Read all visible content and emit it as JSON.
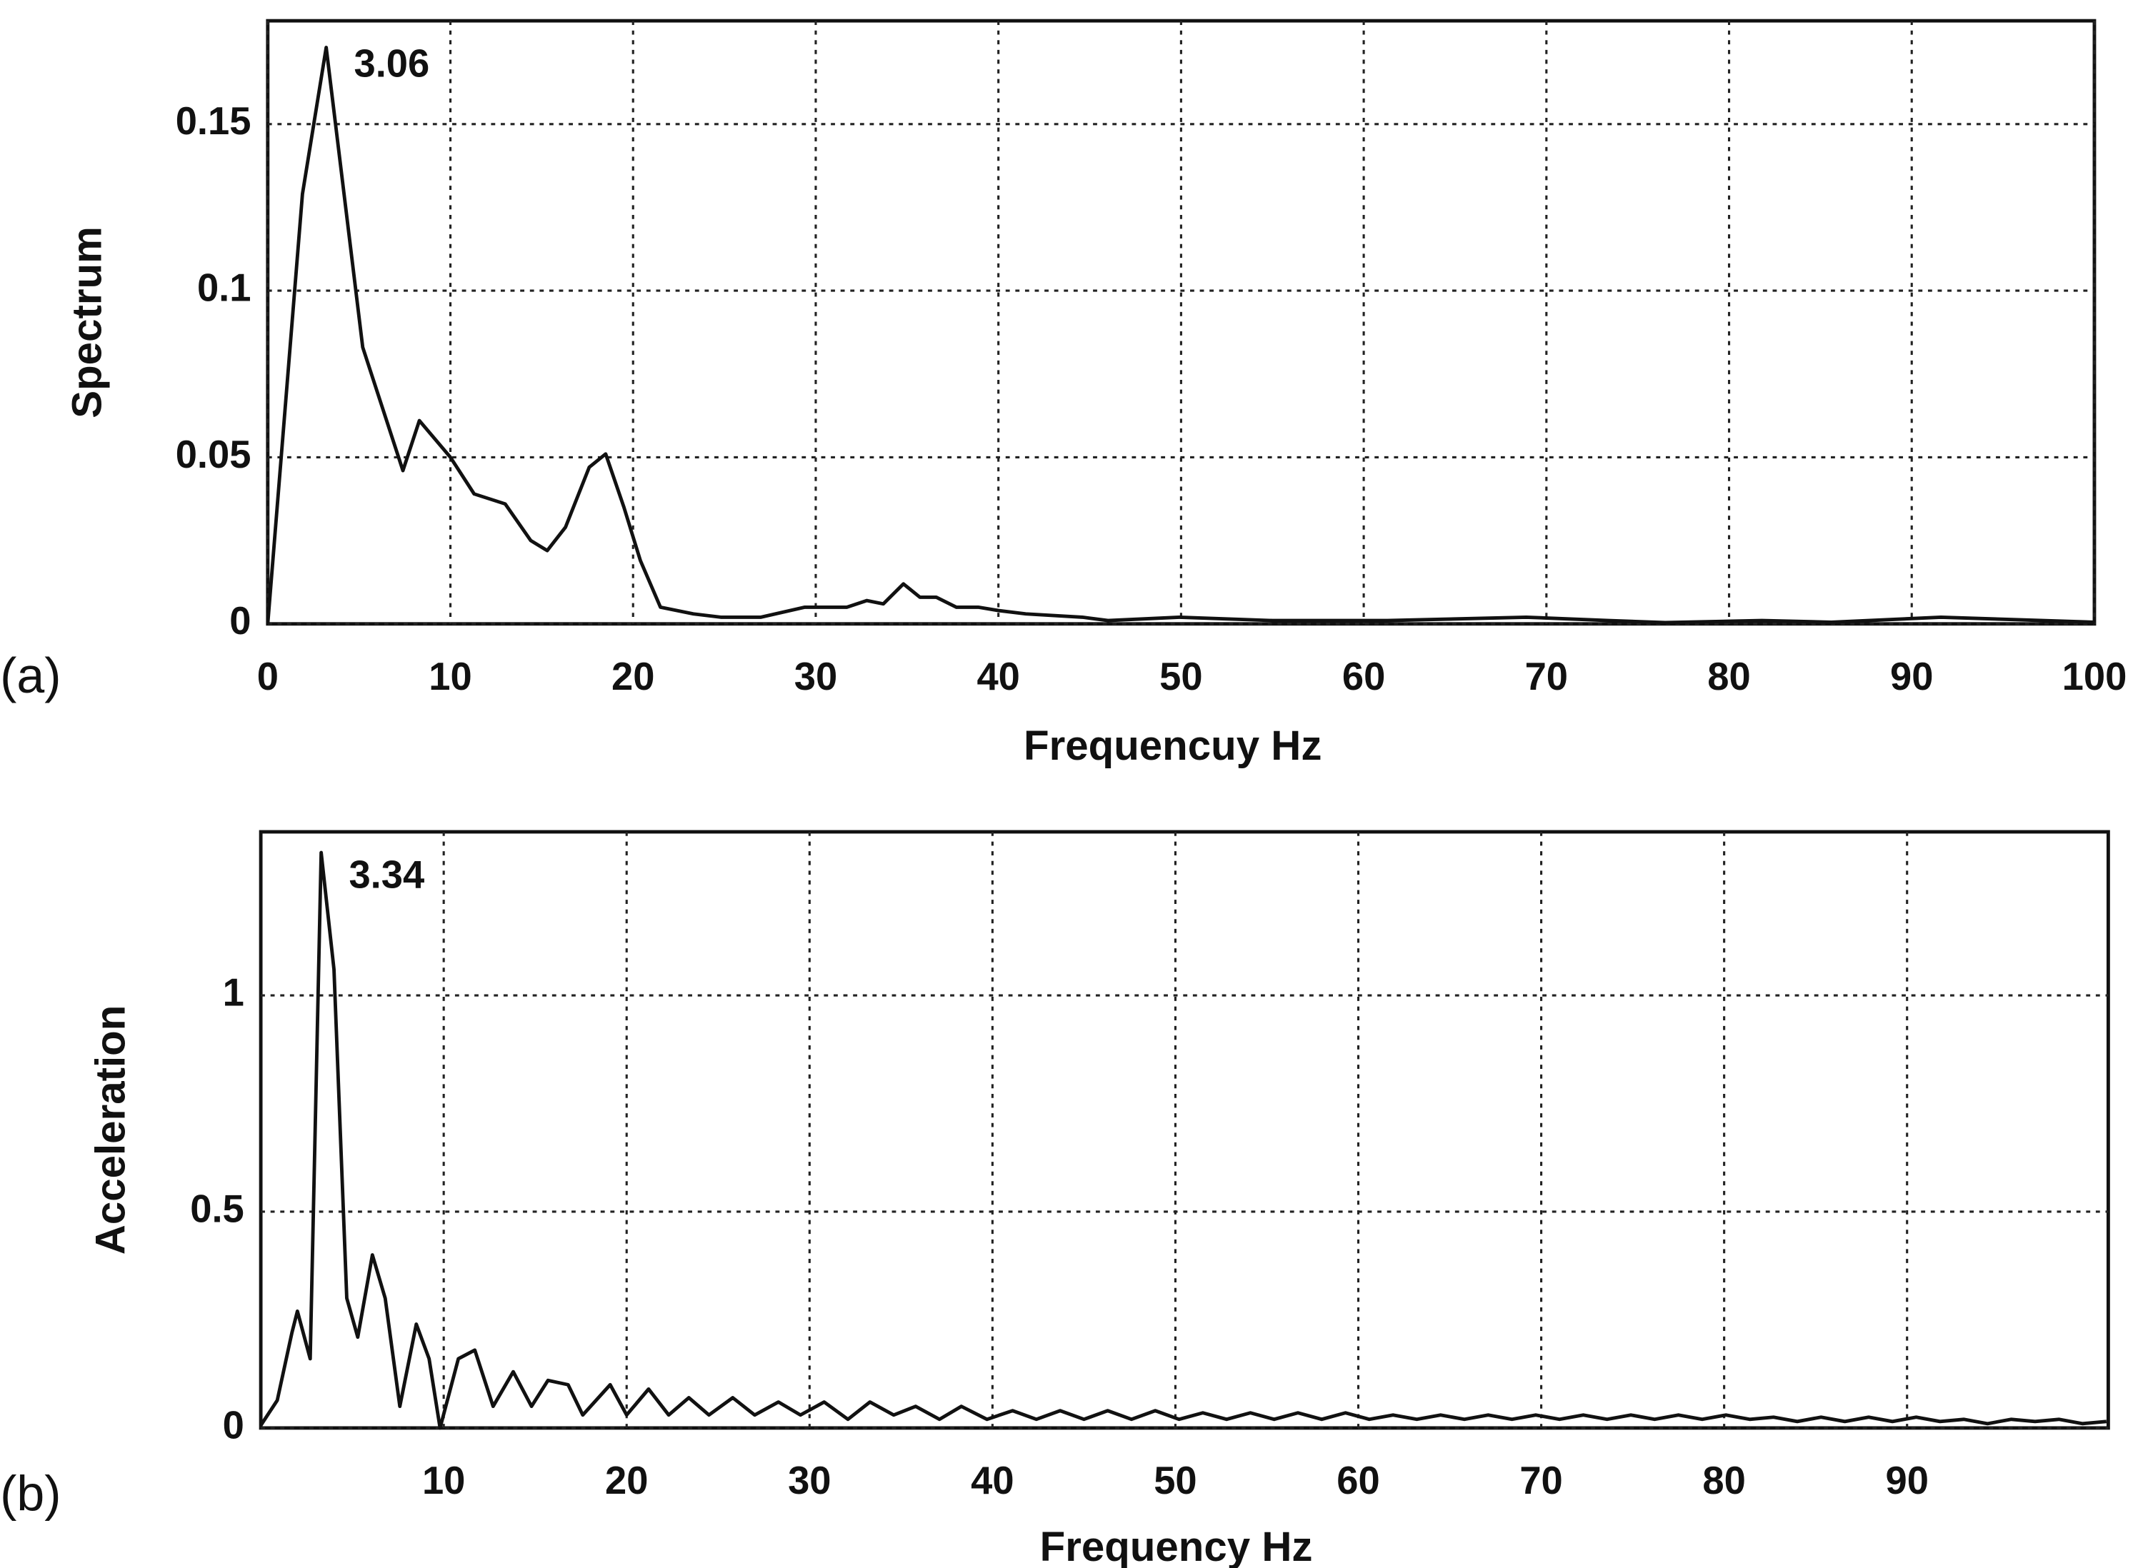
{
  "chart_data": [
    {
      "type": "line",
      "panel_label": "(a)",
      "annotation": "3.06",
      "xlabel": "Frequencuy Hz",
      "ylabel": "Spectrum",
      "color": "#111111",
      "x": [
        0,
        1.9,
        3.2,
        5.2,
        7.4,
        8.3,
        10,
        11.3,
        13,
        14.4,
        15.3,
        16.3,
        17.6,
        18.5,
        19.5,
        20.4,
        21.5,
        23.3,
        24.8,
        27,
        29.4,
        31.7,
        32.8,
        33.7,
        34.8,
        35.7,
        36.6,
        37.7,
        38.9,
        40,
        41.5,
        44.6,
        46,
        49.9,
        55,
        61.3,
        68.9,
        73.4,
        76.5,
        81.8,
        85.6,
        91.6,
        100
      ],
      "values": [
        0,
        0.129,
        0.173,
        0.083,
        0.046,
        0.061,
        0.05,
        0.039,
        0.036,
        0.025,
        0.022,
        0.029,
        0.047,
        0.051,
        0.035,
        0.019,
        0.005,
        0.003,
        0.002,
        0.002,
        0.005,
        0.005,
        0.007,
        0.006,
        0.012,
        0.008,
        0.008,
        0.005,
        0.005,
        0.004,
        0.003,
        0.002,
        0.001,
        0.002,
        0.001,
        0.001,
        0.002,
        0.001,
        0.0004,
        0.001,
        0.0005,
        0.002,
        0.0005
      ],
      "xlim": [
        0,
        100
      ],
      "ylim": [
        0,
        0.181
      ],
      "xticks": [
        0,
        10,
        20,
        30,
        40,
        50,
        60,
        70,
        80,
        90,
        100
      ],
      "yticks": [
        0,
        0.05,
        0.1,
        0.15
      ],
      "grid": true
    },
    {
      "type": "line",
      "panel_label": "(b)",
      "annotation": "3.34",
      "xlabel": "Frequency Hz",
      "ylabel": "Acceleration",
      "color": "#111111",
      "x": [
        0,
        0.9,
        1.7,
        2.0,
        2.7,
        3.3,
        4.0,
        4.7,
        5.3,
        6.1,
        6.8,
        7.6,
        8.5,
        9.2,
        9.8,
        10.8,
        11.7,
        12.7,
        13.8,
        14.8,
        15.7,
        16.8,
        17.6,
        19.1,
        20,
        21.2,
        22.3,
        23.4,
        24.5,
        25.8,
        27,
        28.3,
        29.5,
        30.8,
        32.1,
        33.3,
        34.6,
        35.8,
        37.1,
        38.3,
        39.7,
        41.1,
        42.4,
        43.7,
        45,
        46.3,
        47.6,
        48.9,
        50.2,
        51.5,
        52.8,
        54.1,
        55.4,
        56.7,
        58,
        59.3,
        60.6,
        61.9,
        63.2,
        64.5,
        65.8,
        67.1,
        68.4,
        69.7,
        71,
        72.3,
        73.6,
        74.9,
        76.2,
        77.5,
        78.8,
        80.1,
        81.4,
        82.7,
        84,
        85.3,
        86.6,
        87.9,
        89.2,
        90.5,
        91.8,
        93.1,
        94.4,
        95.7,
        97,
        98.3,
        99.6,
        100.9
      ],
      "values": [
        0.006,
        0.064,
        0.22,
        0.27,
        0.16,
        1.33,
        1.06,
        0.3,
        0.21,
        0.4,
        0.3,
        0.05,
        0.24,
        0.16,
        0,
        0.16,
        0.18,
        0.05,
        0.13,
        0.05,
        0.11,
        0.1,
        0.03,
        0.1,
        0.03,
        0.09,
        0.03,
        0.07,
        0.03,
        0.07,
        0.03,
        0.06,
        0.03,
        0.06,
        0.02,
        0.06,
        0.03,
        0.05,
        0.02,
        0.05,
        0.02,
        0.04,
        0.02,
        0.04,
        0.02,
        0.04,
        0.02,
        0.04,
        0.02,
        0.035,
        0.02,
        0.035,
        0.02,
        0.035,
        0.02,
        0.035,
        0.02,
        0.03,
        0.02,
        0.03,
        0.02,
        0.03,
        0.02,
        0.03,
        0.02,
        0.03,
        0.02,
        0.03,
        0.02,
        0.03,
        0.02,
        0.03,
        0.02,
        0.025,
        0.015,
        0.025,
        0.015,
        0.025,
        0.015,
        0.025,
        0.015,
        0.02,
        0.01,
        0.02,
        0.015,
        0.02,
        0.01,
        0.015
      ],
      "xlim": [
        0,
        101
      ],
      "ylim": [
        0,
        1.378
      ],
      "xticks": [
        10,
        20,
        30,
        40,
        50,
        60,
        70,
        80,
        90
      ],
      "yticks": [
        0,
        0.5,
        1
      ],
      "grid": true
    }
  ]
}
